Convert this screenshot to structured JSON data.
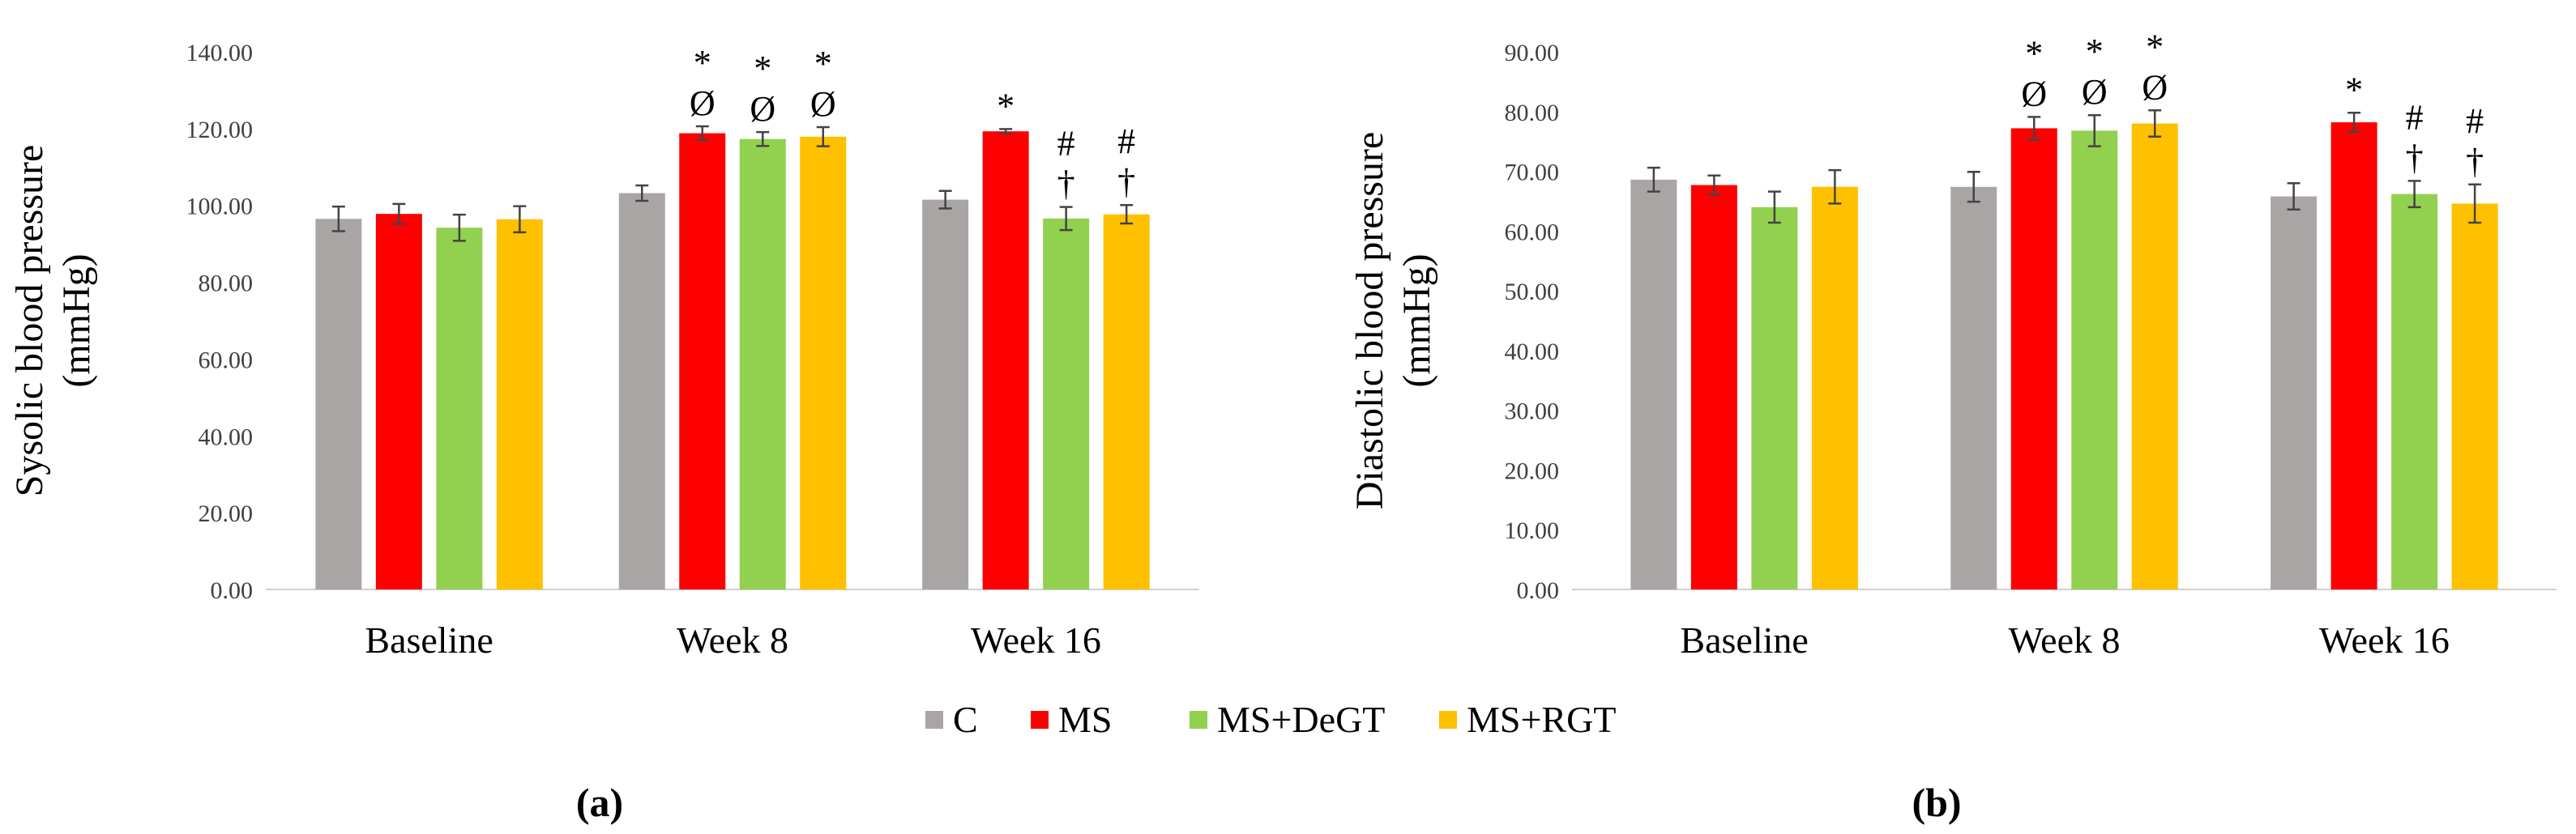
{
  "chart_data": [
    {
      "type": "bar",
      "panel_label": "(a)",
      "ylabel_lines": [
        "Sysolic blood pressure",
        "(mmHg)"
      ],
      "xlabel": "",
      "ylim": [
        0,
        140
      ],
      "ytick_step": 20,
      "ytick_labels": [
        "0.00",
        "20.00",
        "40.00",
        "60.00",
        "80.00",
        "100.00",
        "120.00",
        "140.00"
      ],
      "grid": false,
      "categories": [
        "Baseline",
        "Week 8",
        "Week 16"
      ],
      "series": [
        {
          "name": "C",
          "values": [
            96.5,
            103.2,
            101.5
          ],
          "errors": [
            3.2,
            2.0,
            2.3
          ],
          "annotations": [
            [],
            [],
            []
          ]
        },
        {
          "name": "MS",
          "values": [
            97.8,
            118.8,
            119.3
          ],
          "errors": [
            2.6,
            1.8,
            0.6
          ],
          "annotations": [
            [],
            [
              "Ø",
              "*"
            ],
            [
              "*"
            ]
          ]
        },
        {
          "name": "MS+DeGT",
          "values": [
            94.2,
            117.3,
            96.6
          ],
          "errors": [
            3.4,
            1.8,
            3.0
          ],
          "annotations": [
            [],
            [
              "Ø",
              "*"
            ],
            [
              "†",
              "#"
            ]
          ]
        },
        {
          "name": "MS+RGT",
          "values": [
            96.4,
            117.9,
            97.7
          ],
          "errors": [
            3.4,
            2.5,
            2.4
          ],
          "annotations": [
            [],
            [
              "Ø",
              "*"
            ],
            [
              "†",
              "#"
            ]
          ]
        }
      ]
    },
    {
      "type": "bar",
      "panel_label": "(b)",
      "ylabel_lines": [
        "Diastolic blood pressure",
        "(mmHg)"
      ],
      "xlabel": "",
      "ylim": [
        0,
        90
      ],
      "ytick_step": 10,
      "ytick_labels": [
        "0.00",
        "10.00",
        "20.00",
        "30.00",
        "40.00",
        "50.00",
        "60.00",
        "70.00",
        "80.00",
        "90.00"
      ],
      "grid": false,
      "categories": [
        "Baseline",
        "Week 8",
        "Week 16"
      ],
      "series": [
        {
          "name": "C",
          "values": [
            68.6,
            67.4,
            65.8
          ],
          "errors": [
            2.0,
            2.5,
            2.2
          ],
          "annotations": [
            [],
            [],
            []
          ]
        },
        {
          "name": "MS",
          "values": [
            67.7,
            77.2,
            78.2
          ],
          "errors": [
            1.6,
            1.9,
            1.6
          ],
          "annotations": [
            [],
            [
              "Ø",
              "*"
            ],
            [
              "*"
            ]
          ]
        },
        {
          "name": "MS+DeGT",
          "values": [
            64.0,
            76.8,
            66.2
          ],
          "errors": [
            2.6,
            2.6,
            2.2
          ],
          "annotations": [
            [],
            [
              "Ø",
              "*"
            ],
            [
              "†",
              "#"
            ]
          ]
        },
        {
          "name": "MS+RGT",
          "values": [
            67.4,
            78.0,
            64.6
          ],
          "errors": [
            2.8,
            2.2,
            3.2
          ],
          "annotations": [
            [],
            [
              "Ø",
              "*"
            ],
            [
              "†",
              "#"
            ]
          ]
        }
      ]
    }
  ],
  "legend": {
    "placement": "bottom-center",
    "items": [
      {
        "label": "C",
        "color": "#AAA5A5"
      },
      {
        "label": "MS",
        "color": "#FF0000"
      },
      {
        "label": "MS+DeGT",
        "color": "#92D050"
      },
      {
        "label": "MS+RGT",
        "color": "#FFC000"
      }
    ]
  },
  "colors": {
    "C": "#AAA5A5",
    "MS": "#FF0000",
    "MS+DeGT": "#92D050",
    "MS+RGT": "#FFC000"
  }
}
